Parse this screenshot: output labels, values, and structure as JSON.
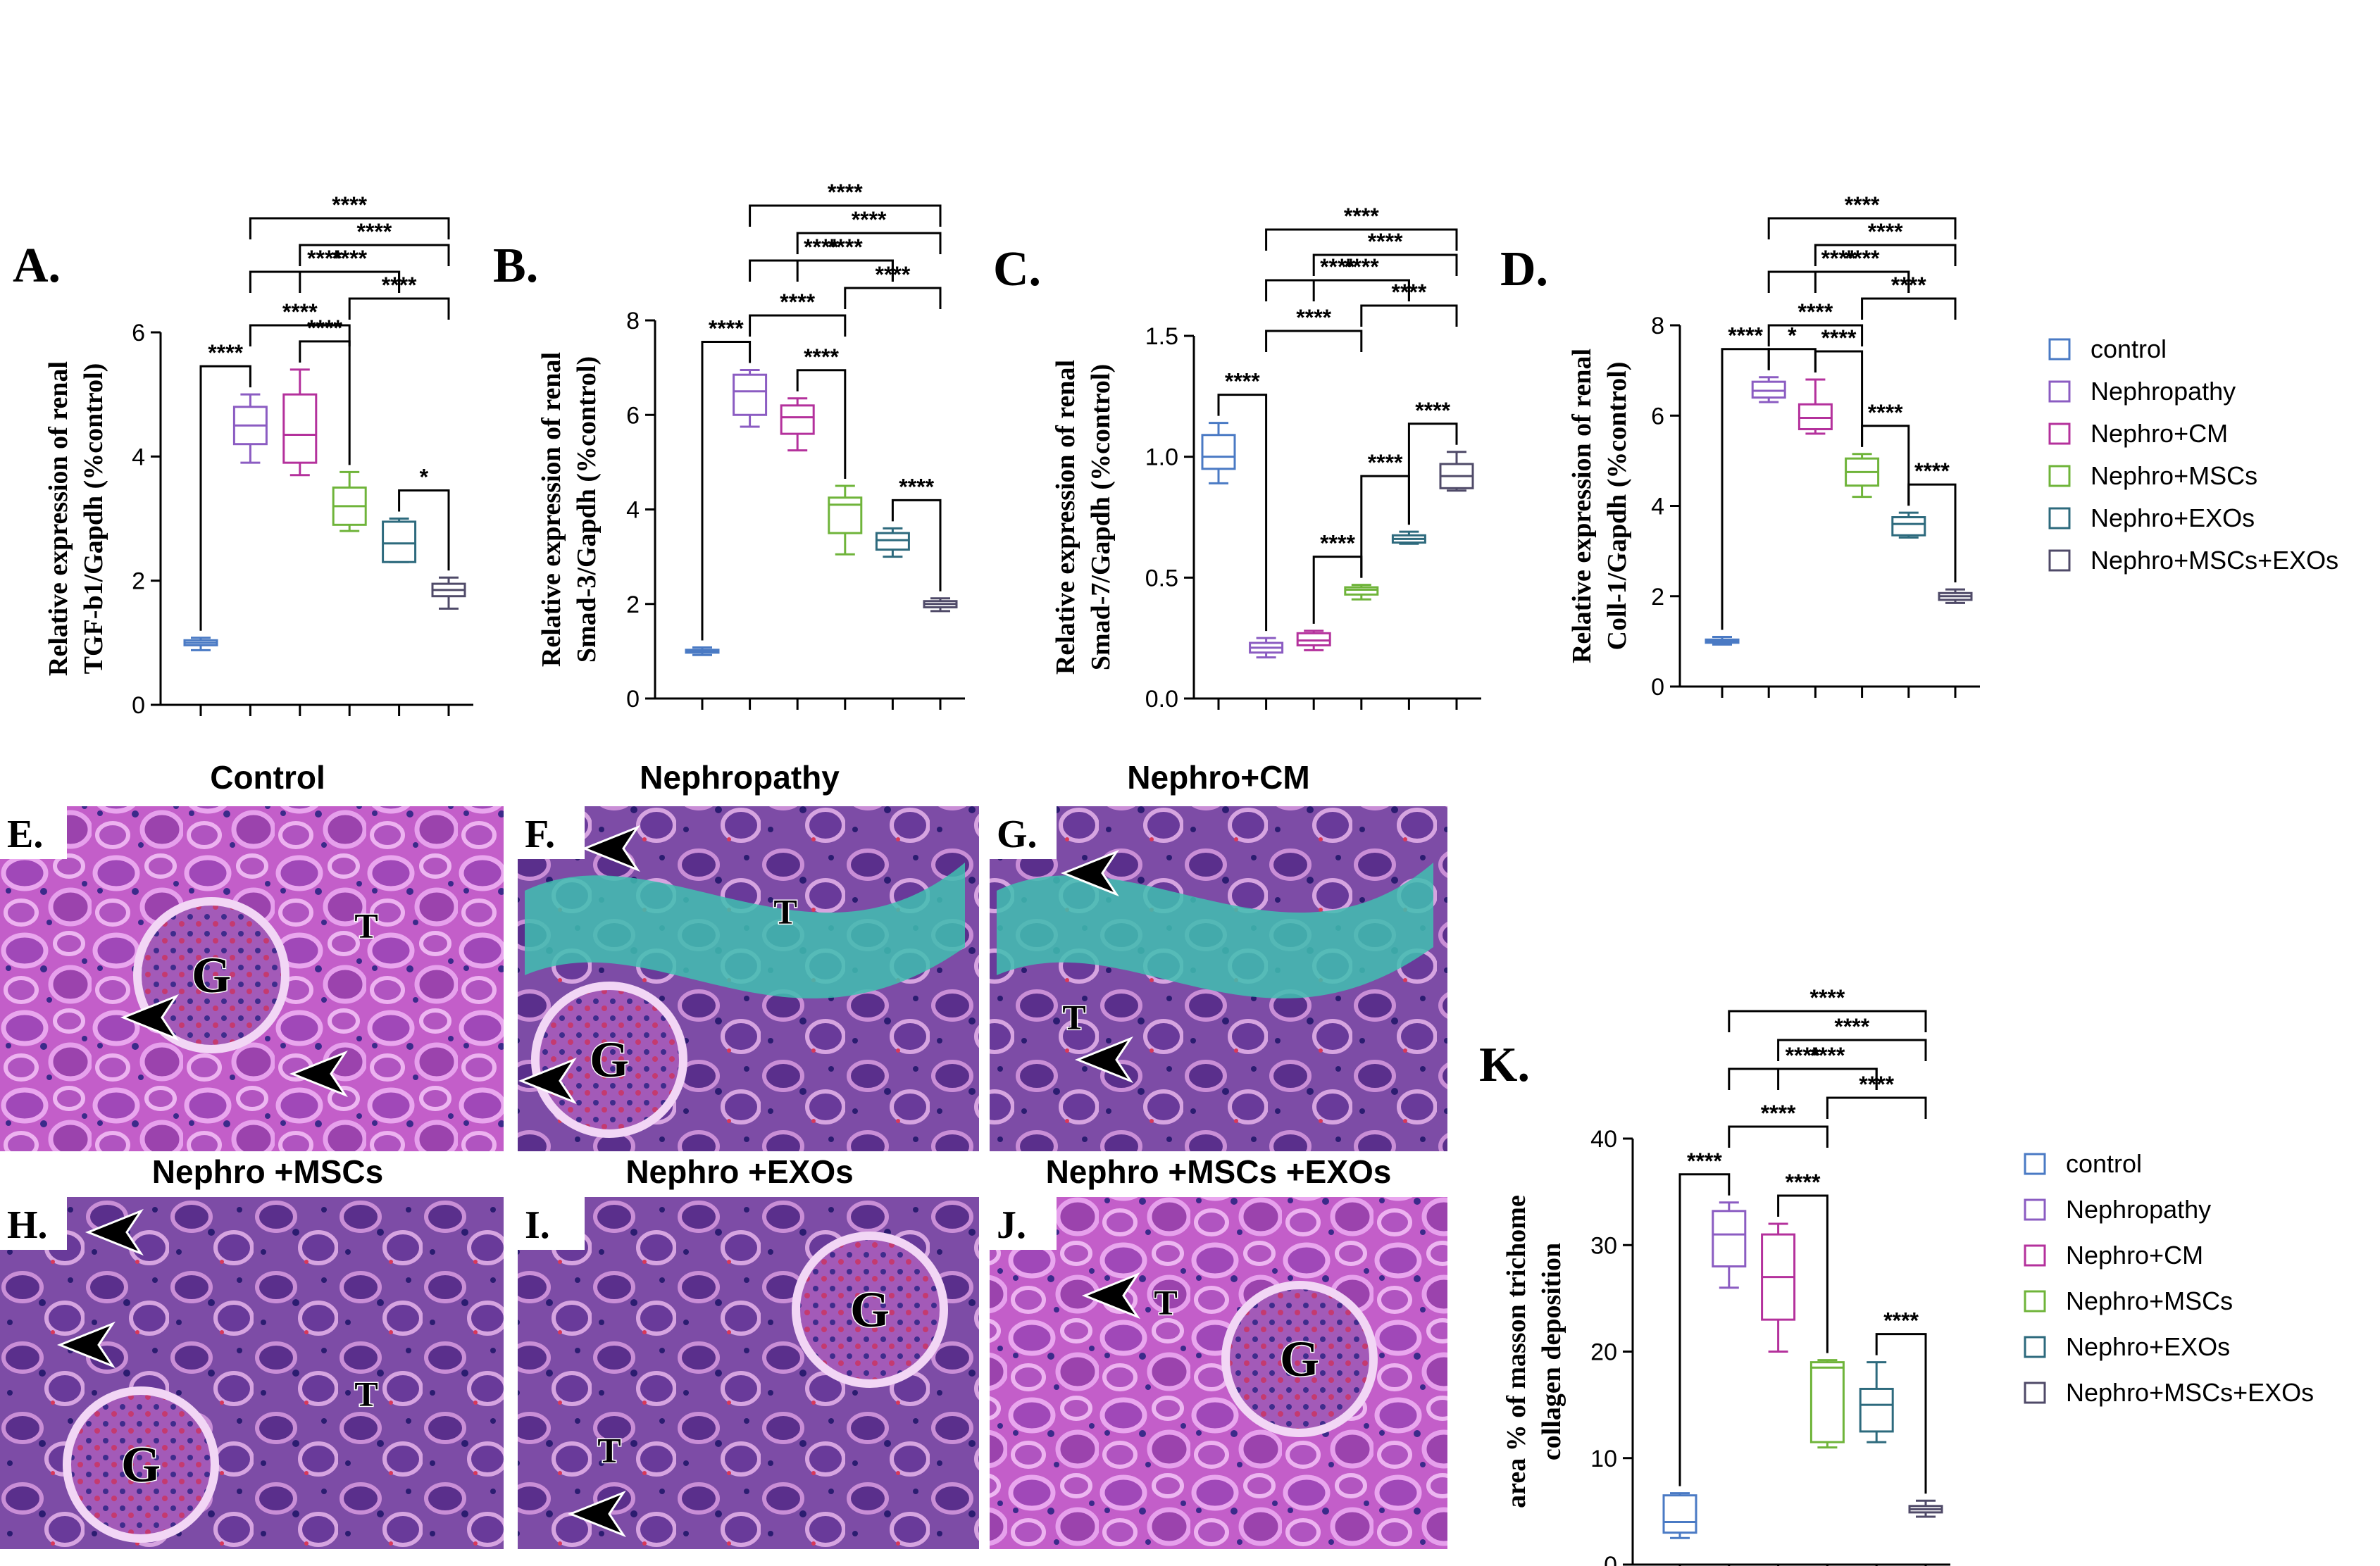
{
  "groups": [
    "control",
    "Nephropathy",
    "Nephro+CM",
    "Nephro+MSCs",
    "Nephro+EXOs",
    "Nephro+MSCs+EXOs"
  ],
  "colors": [
    "#4a7ac4",
    "#8b5cc2",
    "#b4319c",
    "#6fb43a",
    "#2d6a7d",
    "#4f4a68"
  ],
  "sig_label": "****",
  "chart_data": [
    {
      "type": "box",
      "panel_label": "A.",
      "ylabel_lines": [
        "Relative expression of renal",
        "TGF-b1/Gapdh (%control)"
      ],
      "ylim": [
        0,
        6
      ],
      "yticks": [
        0,
        2,
        4,
        6
      ],
      "ytick_labels": [
        "0",
        "2",
        "4",
        "6"
      ],
      "boxes": [
        {
          "min": 0.88,
          "q1": 0.96,
          "median": 1.0,
          "q3": 1.04,
          "max": 1.08
        },
        {
          "min": 3.9,
          "q1": 4.2,
          "median": 4.5,
          "q3": 4.8,
          "max": 5.0
        },
        {
          "min": 3.7,
          "q1": 3.9,
          "median": 4.35,
          "q3": 5.0,
          "max": 5.4
        },
        {
          "min": 2.8,
          "q1": 2.9,
          "median": 3.2,
          "q3": 3.5,
          "max": 3.75
        },
        {
          "min": 2.3,
          "q1": 2.3,
          "median": 2.6,
          "q3": 2.95,
          "max": 3.0
        },
        {
          "min": 1.55,
          "q1": 1.75,
          "median": 1.85,
          "q3": 1.95,
          "max": 2.05
        }
      ],
      "comparisons": [
        {
          "a": 0,
          "b": 1,
          "label": "****"
        },
        {
          "a": 2,
          "b": 3,
          "label": "****"
        },
        {
          "a": 4,
          "b": 5,
          "label": "*"
        },
        {
          "a": 1,
          "b": 3,
          "label": "****"
        },
        {
          "a": 3,
          "b": 5,
          "label": "****"
        },
        {
          "a": 2,
          "b": 4,
          "label": "****"
        },
        {
          "a": 1,
          "b": 4,
          "label": "****"
        },
        {
          "a": 2,
          "b": 5,
          "label": "****"
        },
        {
          "a": 1,
          "b": 5,
          "label": "****"
        }
      ]
    },
    {
      "type": "box",
      "panel_label": "B.",
      "ylabel_lines": [
        "Relative expression of renal",
        "Smad-3/Gapdh (%control)"
      ],
      "ylim": [
        0,
        8
      ],
      "yticks": [
        0,
        2,
        4,
        6,
        8
      ],
      "ytick_labels": [
        "0",
        "2",
        "4",
        "6",
        "8"
      ],
      "boxes": [
        {
          "min": 0.92,
          "q1": 0.97,
          "median": 1.0,
          "q3": 1.03,
          "max": 1.08
        },
        {
          "min": 5.75,
          "q1": 6.0,
          "median": 6.5,
          "q3": 6.85,
          "max": 6.95
        },
        {
          "min": 5.25,
          "q1": 5.6,
          "median": 5.95,
          "q3": 6.2,
          "max": 6.35
        },
        {
          "min": 3.05,
          "q1": 3.5,
          "median": 4.1,
          "q3": 4.25,
          "max": 4.5
        },
        {
          "min": 3.0,
          "q1": 3.15,
          "median": 3.35,
          "q3": 3.5,
          "max": 3.6
        },
        {
          "min": 1.85,
          "q1": 1.93,
          "median": 2.0,
          "q3": 2.06,
          "max": 2.12
        }
      ],
      "comparisons": [
        {
          "a": 0,
          "b": 1,
          "label": "****"
        },
        {
          "a": 2,
          "b": 3,
          "label": "****"
        },
        {
          "a": 4,
          "b": 5,
          "label": "****"
        },
        {
          "a": 1,
          "b": 3,
          "label": "****"
        },
        {
          "a": 3,
          "b": 5,
          "label": "****"
        },
        {
          "a": 2,
          "b": 4,
          "label": "****"
        },
        {
          "a": 1,
          "b": 4,
          "label": "****"
        },
        {
          "a": 2,
          "b": 5,
          "label": "****"
        },
        {
          "a": 1,
          "b": 5,
          "label": "****"
        }
      ]
    },
    {
      "type": "box",
      "panel_label": "C.",
      "ylabel_lines": [
        "Relative expression of renal",
        "Smad-7/Gapdh (%control)"
      ],
      "ylim": [
        0,
        1.5
      ],
      "yticks": [
        0,
        0.5,
        1.0,
        1.5
      ],
      "ytick_labels": [
        "0.0",
        "0.5",
        "1.0",
        "1.5"
      ],
      "boxes": [
        {
          "min": 0.89,
          "q1": 0.95,
          "median": 1.0,
          "q3": 1.09,
          "max": 1.14
        },
        {
          "min": 0.17,
          "q1": 0.19,
          "median": 0.21,
          "q3": 0.23,
          "max": 0.25
        },
        {
          "min": 0.2,
          "q1": 0.22,
          "median": 0.24,
          "q3": 0.27,
          "max": 0.28
        },
        {
          "min": 0.41,
          "q1": 0.43,
          "median": 0.45,
          "q3": 0.46,
          "max": 0.47
        },
        {
          "min": 0.64,
          "q1": 0.645,
          "median": 0.66,
          "q3": 0.675,
          "max": 0.69
        },
        {
          "min": 0.86,
          "q1": 0.87,
          "median": 0.92,
          "q3": 0.97,
          "max": 1.02
        }
      ],
      "comparisons": [
        {
          "a": 0,
          "b": 1,
          "label": "****"
        },
        {
          "a": 2,
          "b": 3,
          "label": "****"
        },
        {
          "a": 4,
          "b": 5,
          "label": "****"
        },
        {
          "a": 3,
          "b": 4,
          "label": "****"
        },
        {
          "a": 1,
          "b": 3,
          "label": "****"
        },
        {
          "a": 3,
          "b": 5,
          "label": "****"
        },
        {
          "a": 2,
          "b": 4,
          "label": "****"
        },
        {
          "a": 1,
          "b": 4,
          "label": "****"
        },
        {
          "a": 2,
          "b": 5,
          "label": "****"
        },
        {
          "a": 1,
          "b": 5,
          "label": "****"
        }
      ]
    },
    {
      "type": "box",
      "panel_label": "D.",
      "ylabel_lines": [
        "Relative expression of renal",
        "Coll-1/Gapdh (%control)"
      ],
      "ylim": [
        0,
        8
      ],
      "yticks": [
        0,
        2,
        4,
        6,
        8
      ],
      "ytick_labels": [
        "0",
        "2",
        "4",
        "6",
        "8"
      ],
      "boxes": [
        {
          "min": 0.93,
          "q1": 0.97,
          "median": 1.0,
          "q3": 1.04,
          "max": 1.1
        },
        {
          "min": 6.3,
          "q1": 6.4,
          "median": 6.55,
          "q3": 6.75,
          "max": 6.85
        },
        {
          "min": 5.6,
          "q1": 5.7,
          "median": 5.95,
          "q3": 6.25,
          "max": 6.8
        },
        {
          "min": 4.2,
          "q1": 4.45,
          "median": 4.75,
          "q3": 5.05,
          "max": 5.15
        },
        {
          "min": 3.3,
          "q1": 3.35,
          "median": 3.6,
          "q3": 3.75,
          "max": 3.85
        },
        {
          "min": 1.85,
          "q1": 1.92,
          "median": 2.0,
          "q3": 2.07,
          "max": 2.15
        }
      ],
      "comparisons": [
        {
          "a": 0,
          "b": 1,
          "label": "****"
        },
        {
          "a": 2,
          "b": 3,
          "label": "****"
        },
        {
          "a": 4,
          "b": 5,
          "label": "****"
        },
        {
          "a": 1,
          "b": 2,
          "label": "*"
        },
        {
          "a": 3,
          "b": 4,
          "label": "****"
        },
        {
          "a": 1,
          "b": 3,
          "label": "****"
        },
        {
          "a": 3,
          "b": 5,
          "label": "****"
        },
        {
          "a": 2,
          "b": 4,
          "label": "****"
        },
        {
          "a": 1,
          "b": 4,
          "label": "****"
        },
        {
          "a": 2,
          "b": 5,
          "label": "****"
        },
        {
          "a": 1,
          "b": 5,
          "label": "****"
        }
      ]
    },
    {
      "type": "box",
      "panel_label": "K.",
      "ylabel_lines": [
        "area % of masson trichome",
        "collagen deposition"
      ],
      "ylim": [
        0,
        40
      ],
      "yticks": [
        0,
        10,
        20,
        30,
        40
      ],
      "ytick_labels": [
        "0",
        "10",
        "20",
        "30",
        "40"
      ],
      "boxes": [
        {
          "min": 2.5,
          "q1": 3.0,
          "median": 4.0,
          "q3": 6.5,
          "max": 6.7
        },
        {
          "min": 26.0,
          "q1": 28.0,
          "median": 31.0,
          "q3": 33.2,
          "max": 34.0
        },
        {
          "min": 20.0,
          "q1": 23.0,
          "median": 27.0,
          "q3": 31.0,
          "max": 32.0
        },
        {
          "min": 11.0,
          "q1": 11.5,
          "median": 18.5,
          "q3": 19.0,
          "max": 19.2
        },
        {
          "min": 11.5,
          "q1": 12.5,
          "median": 15.0,
          "q3": 16.5,
          "max": 19.0
        },
        {
          "min": 4.5,
          "q1": 4.9,
          "median": 5.2,
          "q3": 5.5,
          "max": 6.0
        }
      ],
      "comparisons": [
        {
          "a": 0,
          "b": 1,
          "label": "****"
        },
        {
          "a": 2,
          "b": 3,
          "label": "****"
        },
        {
          "a": 4,
          "b": 5,
          "label": "****"
        },
        {
          "a": 1,
          "b": 3,
          "label": "****"
        },
        {
          "a": 3,
          "b": 5,
          "label": "****"
        },
        {
          "a": 2,
          "b": 4,
          "label": "****"
        },
        {
          "a": 1,
          "b": 4,
          "label": "****"
        },
        {
          "a": 2,
          "b": 5,
          "label": "****"
        },
        {
          "a": 1,
          "b": 5,
          "label": "****"
        }
      ]
    }
  ],
  "micrographs": [
    {
      "panel_label": "E.",
      "title": "Control",
      "marks": [
        "G",
        "T"
      ]
    },
    {
      "panel_label": "F.",
      "title": "Nephropathy",
      "marks": [
        "G",
        "T"
      ]
    },
    {
      "panel_label": "G.",
      "title": "Nephro+CM",
      "marks": [
        "T"
      ]
    },
    {
      "panel_label": "H.",
      "title": "Nephro +MSCs",
      "marks": [
        "G",
        "T"
      ]
    },
    {
      "panel_label": "I.",
      "title": "Nephro +EXOs",
      "marks": [
        "G",
        "T"
      ]
    },
    {
      "panel_label": "J.",
      "title": "Nephro +MSCs +EXOs",
      "marks": [
        "T",
        "G"
      ]
    }
  ]
}
